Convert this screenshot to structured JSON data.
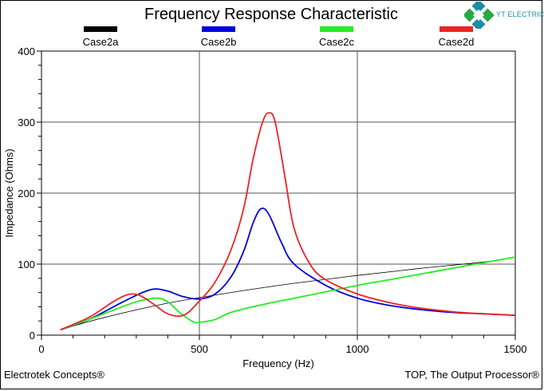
{
  "chart_data": {
    "type": "line",
    "title": "Frequency Response Characteristic",
    "xlabel": "Frequency (Hz)",
    "ylabel": "Impedance (Ohms)",
    "xlim": [
      0,
      1500
    ],
    "ylim": [
      0,
      400
    ],
    "x_ticks": [
      "0",
      "500",
      "1000",
      "1500"
    ],
    "y_ticks": [
      "0",
      "100",
      "200",
      "300",
      "400"
    ],
    "grid": true,
    "legend_position": "top",
    "series": [
      {
        "name": "Case2a",
        "color": "#000000",
        "x": [
          60,
          200,
          400,
          600,
          800,
          1000,
          1200,
          1400,
          1500
        ],
        "y": [
          7.5,
          25,
          45,
          60,
          73,
          84,
          94,
          103,
          110
        ]
      },
      {
        "name": "Case2b",
        "color": "#0000dd",
        "x": [
          60,
          150,
          250,
          320,
          360,
          400,
          450,
          500,
          550,
          600,
          640,
          670,
          695,
          720,
          760,
          800,
          900,
          1000,
          1100,
          1200,
          1300,
          1400,
          1500
        ],
        "y": [
          7.5,
          22,
          45,
          60,
          65,
          62,
          54,
          51,
          58,
          82,
          118,
          158,
          178,
          170,
          130,
          100,
          70,
          52,
          42,
          36,
          32,
          30,
          28
        ]
      },
      {
        "name": "Case2c",
        "color": "#22ee22",
        "x": [
          60,
          150,
          250,
          300,
          340,
          370,
          400,
          440,
          480,
          500,
          550,
          600,
          700,
          800,
          900,
          1000,
          1100,
          1200,
          1300,
          1400,
          1500
        ],
        "y": [
          7.5,
          22,
          39,
          47,
          51,
          52,
          47,
          31,
          19,
          18,
          22,
          32,
          43,
          52,
          61,
          70,
          78,
          86,
          94,
          102,
          110
        ]
      },
      {
        "name": "Case2d",
        "color": "#ee2222",
        "x": [
          60,
          150,
          220,
          260,
          290,
          320,
          360,
          400,
          450,
          500,
          550,
          600,
          640,
          670,
          700,
          720,
          740,
          770,
          800,
          850,
          900,
          1000,
          1100,
          1200,
          1300,
          1400,
          1500
        ],
        "y": [
          7.5,
          25,
          45,
          55,
          58,
          54,
          42,
          30,
          28,
          48,
          75,
          120,
          178,
          248,
          300,
          313,
          300,
          225,
          150,
          100,
          78,
          58,
          46,
          38,
          33,
          30,
          28
        ]
      }
    ]
  },
  "footer": {
    "left": "Electrotek Concepts®",
    "right": "TOP, The Output Processor®"
  },
  "logo": {
    "text": "YT ELECTRIC"
  }
}
